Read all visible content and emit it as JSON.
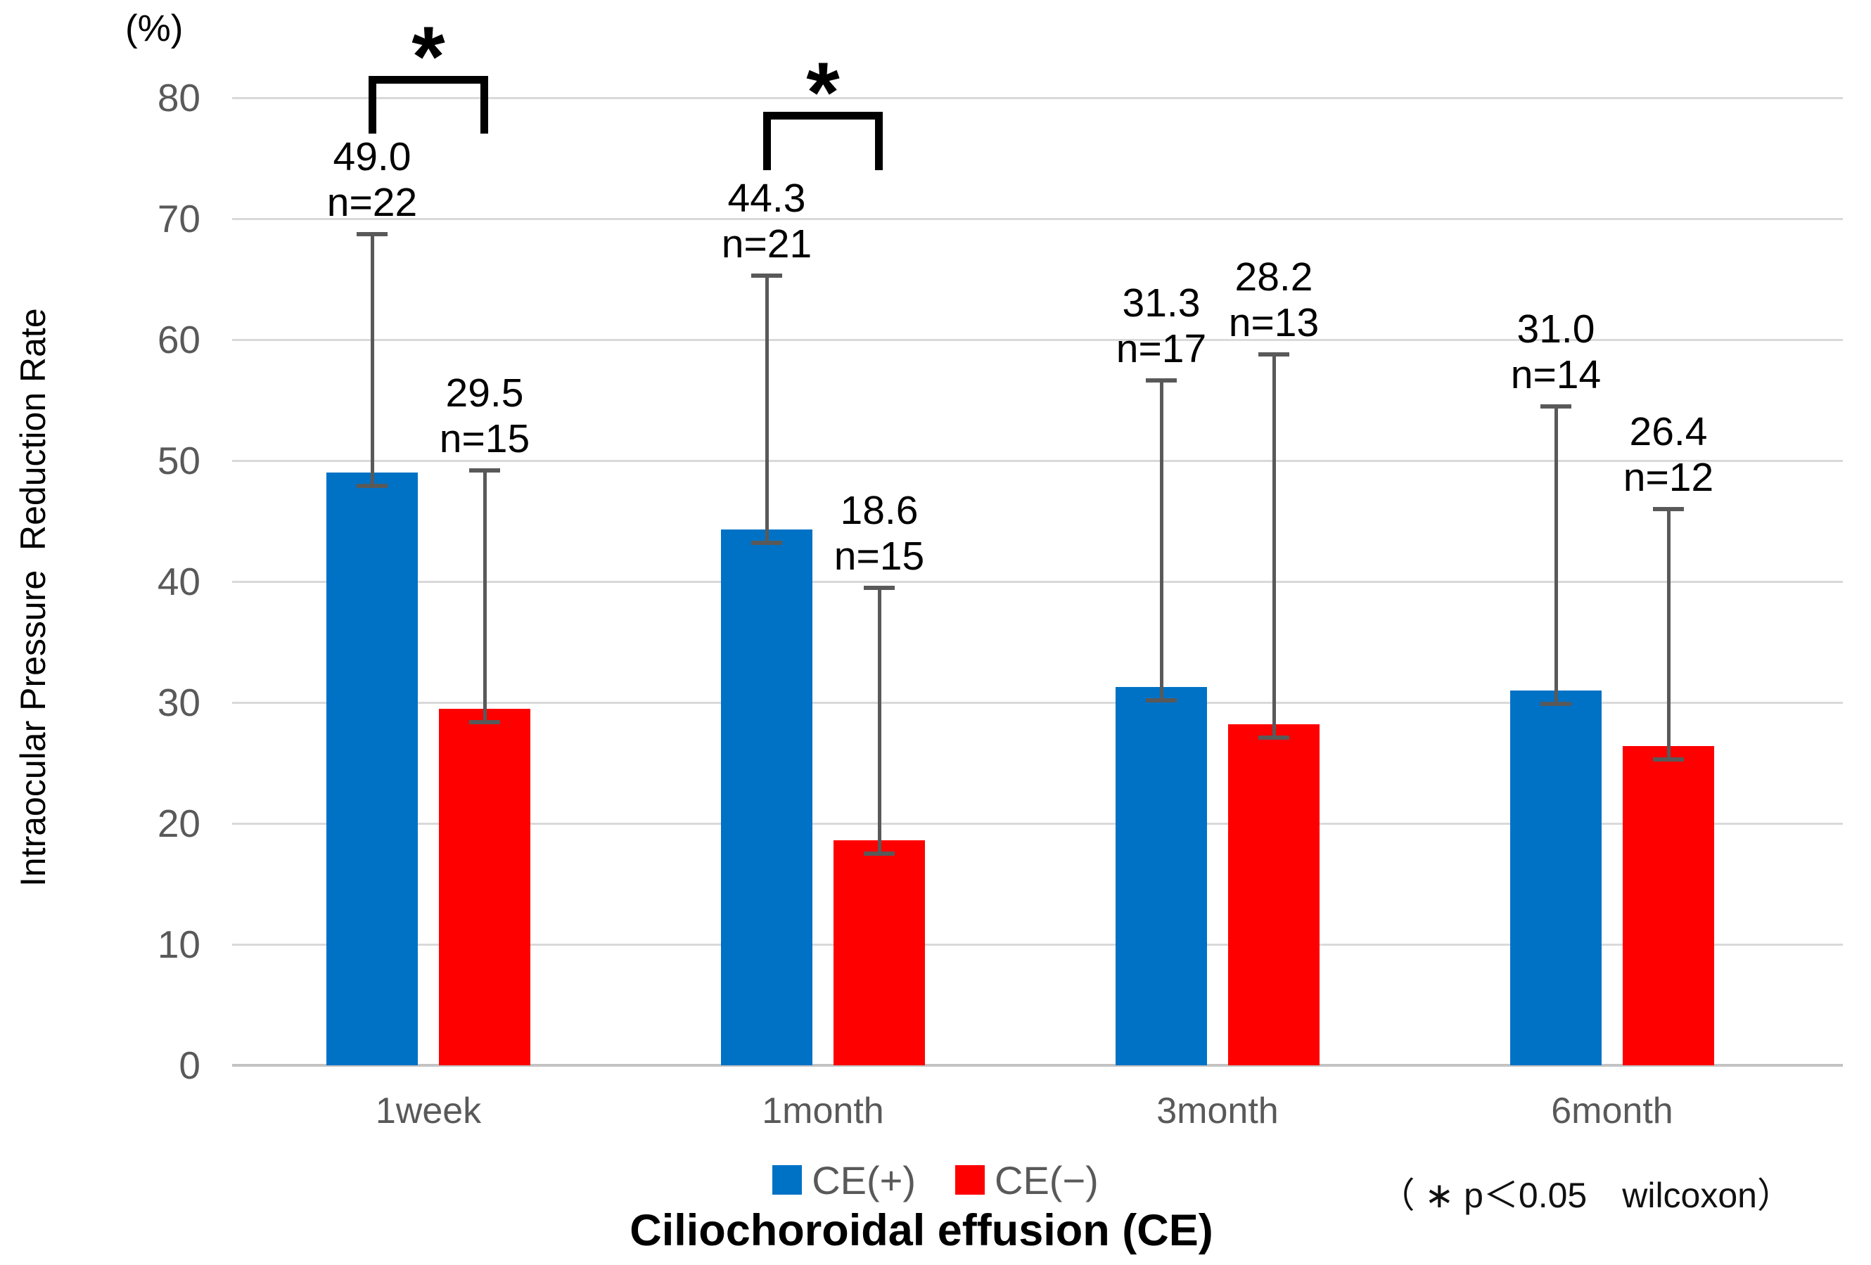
{
  "chart_data": {
    "type": "bar",
    "unit_label": "(%)",
    "ylabel": "Intraocular Pressure  Reduction Rate",
    "xlabel": "Ciliochoroidal effusion (CE)",
    "categories": [
      "1week",
      "1month",
      "3month",
      "6month"
    ],
    "series": [
      {
        "name": "CE(+)",
        "color": "#0072C6",
        "values": [
          49.0,
          44.3,
          31.3,
          31.0
        ],
        "n": [
          22,
          21,
          17,
          14
        ],
        "error_bar_tops": [
          68.7,
          65.3,
          56.6,
          54.5
        ]
      },
      {
        "name": "CE(−)",
        "color": "#FF0000",
        "values": [
          29.5,
          18.6,
          28.2,
          26.4
        ],
        "n": [
          15,
          15,
          13,
          12
        ],
        "error_bar_tops": [
          49.2,
          39.5,
          58.8,
          46.0
        ]
      }
    ],
    "ylim": [
      0,
      80
    ],
    "yticks": [
      0,
      10,
      20,
      30,
      40,
      50,
      60,
      70,
      80
    ],
    "grid": true,
    "legend_position": "bottom",
    "significance_brackets": [
      {
        "category": "1week",
        "symbol": "*"
      },
      {
        "category": "1month",
        "symbol": "*"
      }
    ],
    "footnote": "（ ∗ p＜0.05　wilcoxon）",
    "n_label_prefix": "n="
  },
  "colors": {
    "gridline": "#D9D9D9",
    "axis_line": "#C3C3C3",
    "error_bar": "#595959",
    "tick_text": "#595959",
    "legend_text": "#595959",
    "data_label_text": "#000000",
    "series_blue": "#0072C6",
    "series_red": "#FF0000"
  }
}
